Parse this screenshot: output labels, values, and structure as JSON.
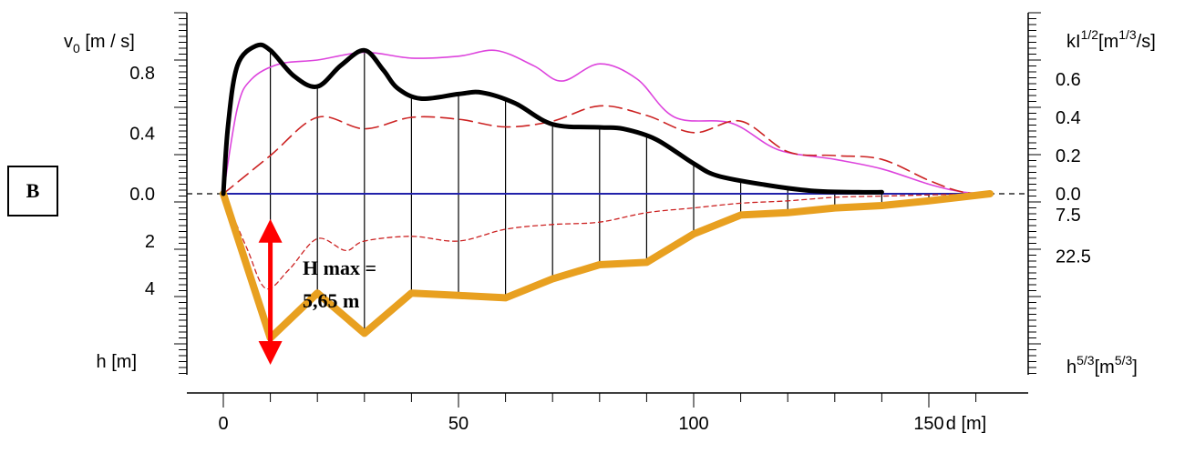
{
  "panel_label": "B",
  "annotation": {
    "line1": "H max =",
    "line2": "5,65 m"
  },
  "colors": {
    "v0": "#000000",
    "kl": "#dd44dd",
    "dashed_long": "#cc2222",
    "dashed_short": "#cc2222",
    "h53": "#e8a020",
    "baseline": "#2222aa",
    "arrow": "#ff0000",
    "verticals": "#000000"
  },
  "chart_data": {
    "type": "line",
    "xlabel": "d [m]",
    "xlim": [
      0,
      165
    ],
    "xticks": [
      0,
      50,
      100,
      150
    ],
    "verticals_x": [
      10,
      20,
      30,
      40,
      50,
      60,
      70,
      80,
      90,
      100,
      110,
      120,
      130,
      140,
      150
    ],
    "left_axis": {
      "top_label": "v",
      "top_label_sub": "0",
      "top_label_unit": " [m / s]",
      "top_ticks": [
        "0.8",
        "0.4",
        "0.0"
      ],
      "top_range": [
        0,
        1.0
      ],
      "bottom_label": "h [m]",
      "bottom_ticks": [
        "2",
        "4"
      ],
      "bottom_range": [
        0,
        7
      ]
    },
    "right_axis": {
      "top_label": "kI",
      "top_label_sup": "1/2",
      "top_label_unit": "[m",
      "top_label_unit_sup": "1/3",
      "top_label_unit_tail": "/s]",
      "top_ticks": [
        "0.6",
        "0.4",
        "0.2",
        "0.0"
      ],
      "top_range": [
        0,
        0.8
      ],
      "bottom_label": "h",
      "bottom_label_sup": "5/3",
      "bottom_label_unit": "[m",
      "bottom_label_unit_sup": "5/3",
      "bottom_label_unit_tail": "]",
      "bottom_ticks": [
        "7.5",
        "22.5"
      ],
      "bottom_range": [
        0,
        56
      ]
    },
    "series": [
      {
        "id": "v0",
        "axis": "left_top",
        "values": [
          [
            0,
            0
          ],
          [
            1,
            0.45
          ],
          [
            3,
            0.85
          ],
          [
            7,
            0.98
          ],
          [
            10,
            0.95
          ],
          [
            15,
            0.78
          ],
          [
            20,
            0.71
          ],
          [
            25,
            0.85
          ],
          [
            30,
            0.95
          ],
          [
            34,
            0.82
          ],
          [
            37,
            0.7
          ],
          [
            42,
            0.63
          ],
          [
            50,
            0.66
          ],
          [
            55,
            0.67
          ],
          [
            62,
            0.6
          ],
          [
            70,
            0.46
          ],
          [
            80,
            0.44
          ],
          [
            85,
            0.43
          ],
          [
            92,
            0.36
          ],
          [
            100,
            0.2
          ],
          [
            105,
            0.12
          ],
          [
            115,
            0.06
          ],
          [
            125,
            0.02
          ],
          [
            135,
            0.01
          ],
          [
            140,
            0.01
          ]
        ]
      },
      {
        "id": "kl",
        "axis": "right_top",
        "values": [
          [
            0,
            0
          ],
          [
            3,
            0.45
          ],
          [
            6,
            0.6
          ],
          [
            12,
            0.68
          ],
          [
            20,
            0.7
          ],
          [
            30,
            0.74
          ],
          [
            40,
            0.71
          ],
          [
            50,
            0.72
          ],
          [
            58,
            0.75
          ],
          [
            66,
            0.67
          ],
          [
            72,
            0.59
          ],
          [
            80,
            0.68
          ],
          [
            88,
            0.6
          ],
          [
            96,
            0.4
          ],
          [
            108,
            0.37
          ],
          [
            118,
            0.23
          ],
          [
            130,
            0.18
          ],
          [
            140,
            0.13
          ],
          [
            150,
            0.05
          ],
          [
            157,
            0.01
          ],
          [
            163,
            0
          ]
        ]
      },
      {
        "id": "dashed_long",
        "axis": "right_top",
        "values": [
          [
            0,
            0
          ],
          [
            10,
            0.2
          ],
          [
            20,
            0.4
          ],
          [
            30,
            0.34
          ],
          [
            40,
            0.4
          ],
          [
            50,
            0.39
          ],
          [
            60,
            0.35
          ],
          [
            70,
            0.38
          ],
          [
            80,
            0.46
          ],
          [
            90,
            0.41
          ],
          [
            100,
            0.32
          ],
          [
            110,
            0.38
          ],
          [
            120,
            0.22
          ],
          [
            130,
            0.2
          ],
          [
            140,
            0.18
          ],
          [
            150,
            0.07
          ],
          [
            157,
            0.01
          ],
          [
            163,
            0
          ]
        ]
      },
      {
        "id": "dashed_short",
        "axis": "left_bottom",
        "values": [
          [
            0,
            0
          ],
          [
            5,
            2.3
          ],
          [
            9,
            4.0
          ],
          [
            14,
            3.2
          ],
          [
            20,
            1.9
          ],
          [
            26,
            2.4
          ],
          [
            30,
            2.0
          ],
          [
            40,
            1.8
          ],
          [
            50,
            2.0
          ],
          [
            60,
            1.5
          ],
          [
            70,
            1.3
          ],
          [
            80,
            1.2
          ],
          [
            90,
            0.8
          ],
          [
            100,
            0.6
          ],
          [
            110,
            0.4
          ],
          [
            120,
            0.3
          ],
          [
            130,
            0.15
          ],
          [
            140,
            0.1
          ],
          [
            150,
            0.05
          ],
          [
            163,
            0
          ]
        ]
      },
      {
        "id": "h53",
        "axis": "left_bottom",
        "values": [
          [
            0,
            0
          ],
          [
            10,
            6.1
          ],
          [
            20,
            4.2
          ],
          [
            30,
            5.9
          ],
          [
            40,
            4.2
          ],
          [
            50,
            4.3
          ],
          [
            60,
            4.4
          ],
          [
            70,
            3.6
          ],
          [
            80,
            3.0
          ],
          [
            90,
            2.9
          ],
          [
            100,
            1.7
          ],
          [
            110,
            0.9
          ],
          [
            120,
            0.8
          ],
          [
            130,
            0.6
          ],
          [
            140,
            0.5
          ],
          [
            150,
            0.3
          ],
          [
            163,
            0
          ]
        ]
      }
    ],
    "baseline_x": [
      0,
      163
    ],
    "hmax_arrow": {
      "x": 10,
      "y_top": 1.3,
      "y_bottom": 7.0
    }
  }
}
